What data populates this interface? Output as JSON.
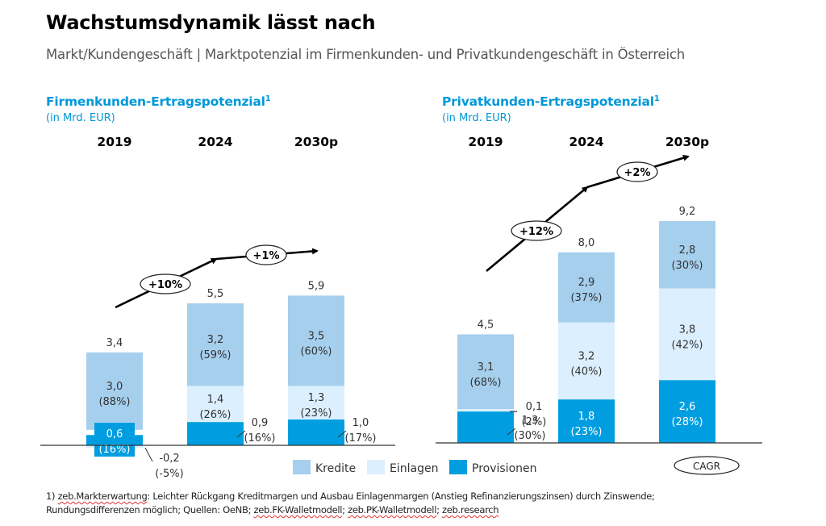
{
  "header": {
    "title": "Wachstumsdynamik lässt nach",
    "subtitle": "Markt/Kundengeschäft | Marktpotenzial im Firmenkunden- und Privatkundengeschäft in Österreich"
  },
  "colors": {
    "kredite": "#a6cfee",
    "einlagen": "#dcefff",
    "provisionen": "#009ee0",
    "title_blue": "#0098d8"
  },
  "legend": {
    "items": [
      {
        "key": "kredite",
        "label": "Kredite"
      },
      {
        "key": "einlagen",
        "label": "Einlagen"
      },
      {
        "key": "provisionen",
        "label": "Provisionen"
      }
    ],
    "cagr_label": "CAGR"
  },
  "footnote": {
    "line1_parts": [
      "1) ",
      "zeb.Markterwartung",
      ": Leichter Rückgang Kreditmargen und Ausbau Einlagenmargen (Anstieg Refinanzierungszinsen) durch Zinswende;"
    ],
    "line2_parts": [
      "Rundungsdifferenzen möglich; Quellen: OeNB; ",
      "zeb.FK-Walletmodell",
      "; ",
      "zeb.PK-Walletmodell",
      "; ",
      "zeb.research"
    ]
  },
  "chart_data": [
    {
      "type": "bar",
      "stacked": true,
      "title": "Firmenkunden-Ertragspotenzial",
      "title_superscript": "1",
      "unit": "(in Mrd. EUR)",
      "categories": [
        "2019",
        "2024",
        "2030p"
      ],
      "totals": [
        "3,4",
        "5,5",
        "5,9"
      ],
      "total_values": [
        3.4,
        5.5,
        5.9
      ],
      "series": [
        {
          "name": "Provisionen",
          "key": "provisionen",
          "values": [
            0.6,
            0.9,
            1.0
          ],
          "labels": [
            "0,6",
            "0,9",
            "1,0"
          ],
          "shares": [
            "(16%)",
            "(16%)",
            "(17%)"
          ]
        },
        {
          "name": "Einlagen",
          "key": "einlagen",
          "values": [
            -0.2,
            1.4,
            1.3
          ],
          "labels": [
            "-0,2",
            "1,4",
            "1,3"
          ],
          "shares": [
            "(-5%)",
            "(26%)",
            "(23%)"
          ]
        },
        {
          "name": "Kredite",
          "key": "kredite",
          "values": [
            3.0,
            3.2,
            3.5
          ],
          "labels": [
            "3,0",
            "3,2",
            "3,5"
          ],
          "shares": [
            "(88%)",
            "(59%)",
            "(60%)"
          ]
        }
      ],
      "cagr": [
        {
          "period": "2019-2024",
          "label": "+10%"
        },
        {
          "period": "2024-2030p",
          "label": "+1%"
        }
      ]
    },
    {
      "type": "bar",
      "stacked": true,
      "title": "Privatkunden-Ertragspotenzial",
      "title_superscript": "1",
      "unit": "(in Mrd. EUR)",
      "categories": [
        "2019",
        "2024",
        "2030p"
      ],
      "totals": [
        "4,5",
        "8,0",
        "9,2"
      ],
      "total_values": [
        4.5,
        8.0,
        9.2
      ],
      "series": [
        {
          "name": "Provisionen",
          "key": "provisionen",
          "values": [
            1.3,
            1.8,
            2.6
          ],
          "labels": [
            "1,3",
            "1,8",
            "2,6"
          ],
          "shares": [
            "(30%)",
            "(23%)",
            "(28%)"
          ]
        },
        {
          "name": "Einlagen",
          "key": "einlagen",
          "values": [
            0.1,
            3.2,
            3.8
          ],
          "labels": [
            "0,1",
            "3,2",
            "3,8"
          ],
          "shares": [
            "(2%)",
            "(40%)",
            "(42%)"
          ]
        },
        {
          "name": "Kredite",
          "key": "kredite",
          "values": [
            3.1,
            2.9,
            2.8
          ],
          "labels": [
            "3,1",
            "2,9",
            "2,8"
          ],
          "shares": [
            "(68%)",
            "(37%)",
            "(30%)"
          ]
        }
      ],
      "cagr": [
        {
          "period": "2019-2024",
          "label": "+12%"
        },
        {
          "period": "2024-2030p",
          "label": "+2%"
        }
      ]
    }
  ]
}
